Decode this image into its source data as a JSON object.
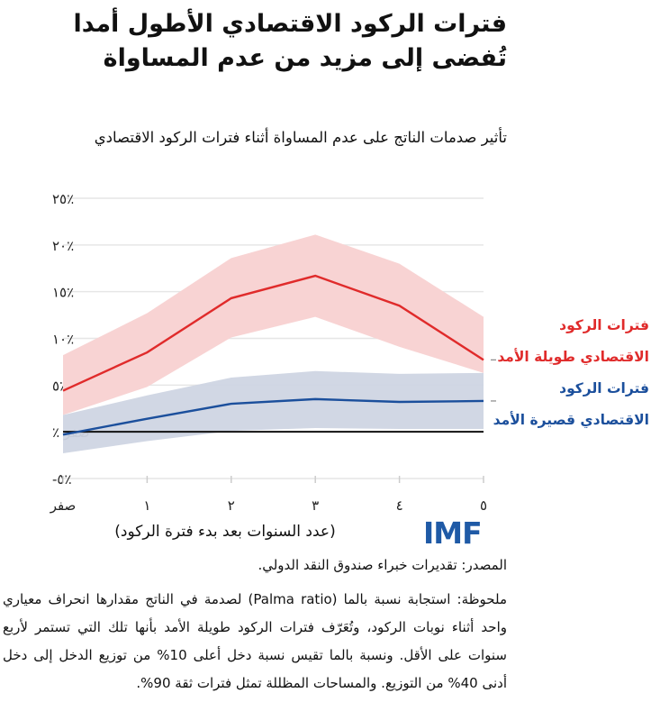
{
  "title": "فترات الركود الاقتصادي الأطول أمدا تُفضى إلى مزيد من عدم المساواة",
  "subtitle": "تأثير صدمات الناتج على عدم المساواة أثناء فترات الركود الاقتصادي",
  "logo_text": "IMF",
  "source": "المصدر: تقديرات خبراء صندوق النقد الدولي.",
  "note": "ملحوظة: استجابة نسبة بالما (Palma ratio) لصدمة في الناتج مقدارها انحراف معياري واحد أثناء نوبات الركود، وتُعَرّف فترات الركود طويلة الأمد بأنها تلك التي تستمر لأربع سنوات على الأقل. ونسبة بالما تقيس نسبة دخل أعلى 10% من توزيع الدخل إلى دخل أدنى 40% من التوزيع. والمساحات المظللة تمثل فترات ثقة 90%.",
  "chart_data": {
    "type": "line",
    "xlabel": "(عدد السنوات بعد بدء فترة الركود)",
    "ylabel": "",
    "x": [
      0,
      1,
      2,
      3,
      4,
      5
    ],
    "x_tick_labels": [
      "صفر",
      "١",
      "٢",
      "٣",
      "٤",
      "٥"
    ],
    "y_ticks": [
      25,
      20,
      15,
      10,
      5,
      0,
      -5
    ],
    "y_tick_labels": [
      "٪٢٥",
      "٪٢٠",
      "٪١٥",
      "٪١٠",
      "٪٥",
      "صفر ٪",
      "٪٥-"
    ],
    "ylim": [
      -5,
      25
    ],
    "grid": true,
    "legend_placement": "right",
    "series": [
      {
        "name": "فترات الركود الاقتصادي طويلة الأمد",
        "name_lines": [
          "فترات الركود",
          "الاقتصادي طويلة الأمد"
        ],
        "color": "#e02b2b",
        "band_color": "#f8d3d3",
        "values": [
          4.4,
          8.5,
          14.3,
          16.7,
          13.5,
          7.7
        ],
        "upper": [
          8.2,
          12.7,
          18.6,
          21.1,
          18.0,
          12.3
        ],
        "lower": [
          1.8,
          4.8,
          10.1,
          12.3,
          9.1,
          6.3
        ]
      },
      {
        "name": "فترات الركود الاقتصادي قصيرة الأمد",
        "name_lines": [
          "فترات الركود",
          "الاقتصادي قصيرة الأمد"
        ],
        "color": "#1b4f9c",
        "band_color": "#cfd5e3",
        "values": [
          -0.3,
          1.4,
          3.0,
          3.5,
          3.2,
          3.3
        ],
        "upper": [
          1.8,
          3.9,
          5.8,
          6.5,
          6.2,
          6.3
        ],
        "lower": [
          -2.3,
          -1.0,
          0.1,
          0.4,
          0.3,
          0.3
        ]
      }
    ]
  }
}
